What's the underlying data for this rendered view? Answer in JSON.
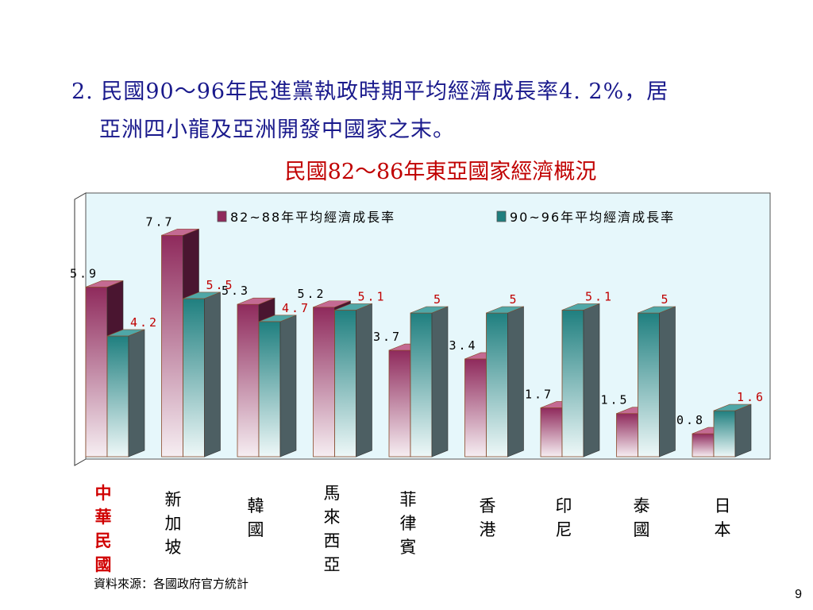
{
  "slide": {
    "heading_line1": "2. 民國90～96年民進黨執政時期平均經濟成長率4. 2%，居",
    "heading_line2": "亞洲四小龍及亞洲開發中國家之末。",
    "source": "資料來源：各國政府官方統計",
    "page_number": "9"
  },
  "colors": {
    "heading": "#1a1a8c",
    "title": "#c00000",
    "highlight": "#d00000",
    "series1": "#8f2a5c",
    "series2": "#1f7f7f",
    "plot_bg": "#e6f7fb"
  },
  "chart_data": {
    "type": "bar",
    "title": "民國82～86年東亞國家經濟概況",
    "categories": [
      "中華民國",
      "新加坡",
      "韓國",
      "馬來西亞",
      "菲律賓",
      "香港",
      "印尼",
      "泰國",
      "日本"
    ],
    "series": [
      {
        "name": "82~88年平均經濟成長率",
        "values": [
          5.9,
          7.7,
          5.3,
          5.2,
          3.7,
          3.4,
          1.7,
          1.5,
          0.8
        ],
        "labels": [
          "5.9",
          "7.7",
          "5.3",
          "5.2",
          "3.7",
          "3.4",
          "1.7",
          "1.5",
          "0.8"
        ]
      },
      {
        "name": "90~96年平均經濟成長率",
        "values": [
          4.2,
          5.5,
          4.7,
          5.1,
          5,
          5,
          5.1,
          5,
          1.6
        ],
        "labels": [
          "4.2",
          "5.5",
          "4.7",
          "5.1",
          "5",
          "5",
          "5.1",
          "5",
          "1.6"
        ]
      }
    ],
    "highlight_category": "中華民國",
    "ylim": [
      0,
      8.4
    ],
    "grid": false,
    "legend_position": "top"
  }
}
